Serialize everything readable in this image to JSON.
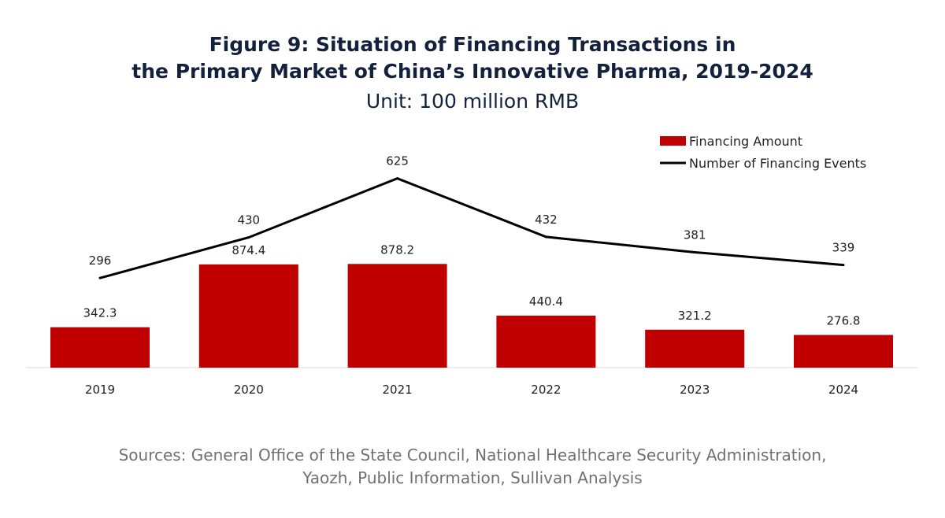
{
  "chart_data": {
    "type": "bar+line",
    "title_line1": "Figure 9: Situation of Financing Transactions in",
    "title_line2": "the Primary Market of China’s Innovative Pharma, 2019-2024",
    "subtitle": "Unit: 100 million RMB",
    "categories": [
      "2019",
      "2020",
      "2021",
      "2022",
      "2023",
      "2024"
    ],
    "series": [
      {
        "name": "Financing Amount",
        "type": "bar",
        "axis": "primary",
        "color": "#c00000",
        "values": [
          342.3,
          874.4,
          878.2,
          440.4,
          321.2,
          276.8
        ]
      },
      {
        "name": "Number of Financing Events",
        "type": "line",
        "axis": "secondary",
        "color": "#000000",
        "values": [
          296,
          430,
          625,
          432,
          381,
          339
        ]
      }
    ],
    "ylim": [
      0,
      2000
    ],
    "y2lim": [
      0,
      780
    ],
    "grid": false,
    "legend": "top-right",
    "source": "Sources: General Office of the State Council, National Healthcare Security Administration,",
    "source_line2": "Yaozh, Public Information, Sullivan Analysis"
  }
}
